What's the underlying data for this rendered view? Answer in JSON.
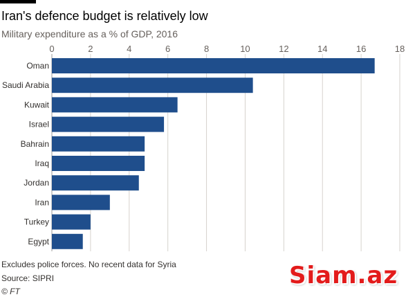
{
  "header": {
    "title": "Iran's defence budget is relatively low",
    "subtitle": "Military expenditure as a % of GDP, 2016"
  },
  "footer": {
    "note": "Excludes police forces. No recent data for Syria",
    "source": "Source: SIPRI",
    "credit": "© FT"
  },
  "watermark": {
    "text": "Siam.az"
  },
  "colors": {
    "bar": "#1f4e8c",
    "grid": "#d6d2cd"
  },
  "chart_data": {
    "type": "bar",
    "orientation": "horizontal",
    "title": "Iran's defence budget is relatively low",
    "subtitle": "Military expenditure as a % of GDP, 2016",
    "categories": [
      "Oman",
      "Saudi Arabia",
      "Kuwait",
      "Israel",
      "Bahrain",
      "Iraq",
      "Jordan",
      "Iran",
      "Turkey",
      "Egypt"
    ],
    "values": [
      16.7,
      10.4,
      6.5,
      5.8,
      4.8,
      4.8,
      4.5,
      3.0,
      2.0,
      1.6
    ],
    "xlim": [
      0,
      18
    ],
    "xticks": [
      0,
      2,
      4,
      6,
      8,
      10,
      12,
      14,
      16,
      18
    ],
    "tick_position": "top",
    "grid": true,
    "legend": "none"
  }
}
